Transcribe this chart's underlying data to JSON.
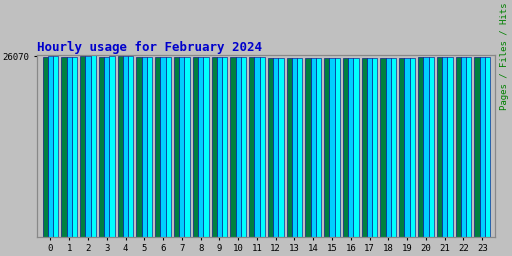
{
  "title": "Hourly usage for February 2024",
  "ylabel": "Pages / Files / Hits",
  "hours": [
    0,
    1,
    2,
    3,
    4,
    5,
    6,
    7,
    8,
    9,
    10,
    11,
    12,
    13,
    14,
    15,
    16,
    17,
    18,
    19,
    20,
    21,
    22,
    23
  ],
  "hits": [
    26070,
    25950,
    26200,
    26060,
    26080,
    25980,
    25990,
    26000,
    26010,
    26010,
    25990,
    25980,
    25900,
    25870,
    25870,
    25870,
    25850,
    25820,
    25830,
    25840,
    25990,
    25940,
    25980,
    26010
  ],
  "files": [
    26060,
    25940,
    26190,
    26050,
    26070,
    25970,
    25980,
    25990,
    26000,
    26000,
    25980,
    25960,
    25890,
    25860,
    25860,
    25860,
    25840,
    25810,
    25820,
    25830,
    25980,
    25930,
    25970,
    26000
  ],
  "pages": [
    26050,
    25930,
    26180,
    26040,
    26060,
    25960,
    25970,
    25980,
    25990,
    25990,
    25970,
    25950,
    25880,
    25850,
    25850,
    25850,
    25830,
    25800,
    25810,
    25820,
    25970,
    25920,
    25960,
    25990
  ],
  "bar_color": "#00FFFF",
  "bar_edge_color": "#000080",
  "files_color": "#00CFFF",
  "pages_color": "#008040",
  "title_color": "#0000CC",
  "ylabel_color": "#008000",
  "bg_color": "#C0C0C0",
  "plot_bg_color": "#C0C0C0",
  "ylim_min": 0,
  "ylim_max": 26300,
  "ytick_val": 26070,
  "ytick_label": "26070",
  "bar_width": 0.28
}
